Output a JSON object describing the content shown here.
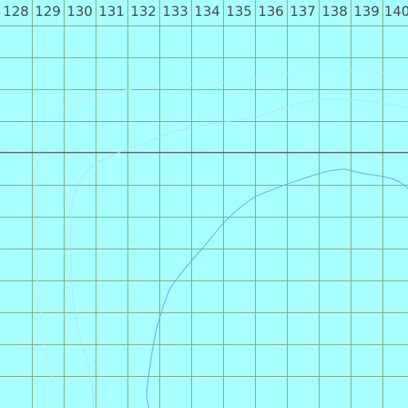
{
  "map": {
    "background_color": "#a8ffff",
    "grid_color": "#7a9a5a",
    "highlight_line_color": "#5a5a5a",
    "contour_colors": [
      "#c6e6ee",
      "#b6dcee",
      "#5aa6ee"
    ],
    "longitude_labels": [
      "128",
      "129",
      "130",
      "131",
      "132",
      "133",
      "134",
      "135",
      "136",
      "137",
      "138",
      "139",
      "140"
    ]
  }
}
